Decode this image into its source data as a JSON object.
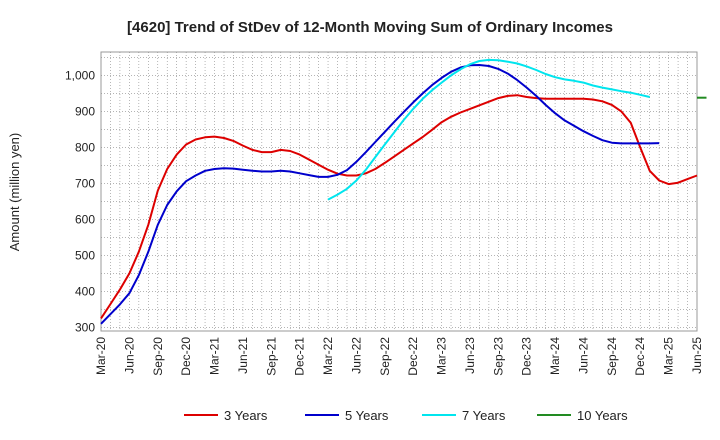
{
  "chart_data": {
    "type": "line",
    "title": "[4620]  Trend of StDev of 12-Month Moving Sum of Ordinary Incomes",
    "xlabel": "",
    "ylabel": "Amount (million yen)",
    "ylim": [
      290,
      1065
    ],
    "yticks": [
      300,
      400,
      500,
      600,
      700,
      800,
      900,
      1000
    ],
    "ytick_labels": [
      "300",
      "400",
      "500",
      "600",
      "700",
      "800",
      "900",
      "1,000"
    ],
    "x_start": "Mar-20",
    "x_end": "Jun-25",
    "x_ticks": [
      "Mar-20",
      "Jun-20",
      "Sep-20",
      "Dec-20",
      "Mar-21",
      "Jun-21",
      "Sep-21",
      "Dec-21",
      "Mar-22",
      "Jun-22",
      "Sep-22",
      "Dec-22",
      "Mar-23",
      "Jun-23",
      "Sep-23",
      "Dec-23",
      "Mar-24",
      "Jun-24",
      "Sep-24",
      "Dec-24",
      "Mar-25",
      "Jun-25"
    ],
    "grid": true,
    "legend_position": "bottom",
    "series": [
      {
        "name": "3 Years",
        "color": "#dd0000",
        "start_index": 0,
        "values": [
          325,
          365,
          405,
          450,
          510,
          585,
          680,
          740,
          780,
          808,
          822,
          828,
          830,
          826,
          818,
          805,
          793,
          787,
          787,
          793,
          790,
          780,
          766,
          752,
          738,
          727,
          722,
          722,
          728,
          740,
          757,
          775,
          793,
          811,
          829,
          849,
          870,
          885,
          897,
          907,
          917,
          927,
          937,
          943,
          945,
          940,
          937,
          935,
          935,
          935,
          935,
          935,
          933,
          928,
          918,
          900,
          868,
          800,
          735,
          708,
          698,
          702,
          712,
          722
        ]
      },
      {
        "name": "5 Years",
        "color": "#0000cc",
        "start_index": 0,
        "values": [
          310,
          337,
          364,
          395,
          445,
          510,
          585,
          640,
          678,
          706,
          722,
          735,
          740,
          742,
          741,
          738,
          735,
          733,
          733,
          735,
          733,
          728,
          723,
          718,
          718,
          724,
          737,
          760,
          787,
          815,
          843,
          871,
          898,
          925,
          950,
          973,
          993,
          1010,
          1022,
          1028,
          1029,
          1026,
          1018,
          1005,
          987,
          966,
          943,
          918,
          895,
          875,
          860,
          845,
          832,
          820,
          813,
          811,
          811,
          811,
          811,
          812
        ]
      },
      {
        "name": "7 Years",
        "color": "#00e5ee",
        "start_index": 24,
        "values": [
          655,
          669,
          685,
          708,
          738,
          773,
          808,
          842,
          876,
          907,
          935,
          959,
          980,
          1000,
          1017,
          1031,
          1040,
          1043,
          1042,
          1038,
          1033,
          1025,
          1015,
          1004,
          995,
          989,
          985,
          980,
          972,
          966,
          961,
          956,
          952,
          946,
          940
        ]
      },
      {
        "name": "10 Years",
        "color": "#228b22",
        "start_index": 63,
        "values": [
          938,
          938
        ]
      }
    ]
  }
}
